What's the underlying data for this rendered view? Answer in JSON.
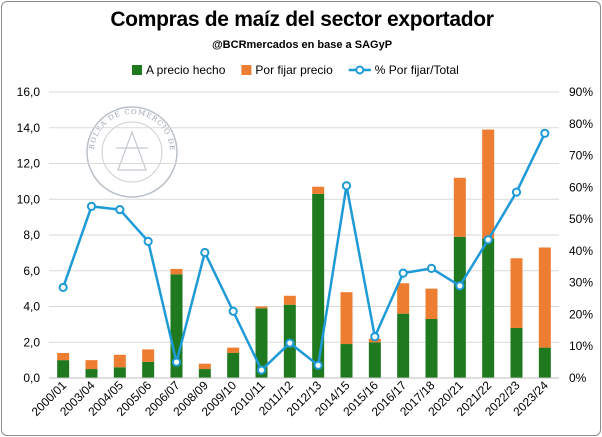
{
  "chart_data": {
    "type": "bar",
    "title": "Compras de maíz del sector exportador",
    "subtitle": "@BCRmercados en base a SAGyP",
    "categories": [
      "2000/01",
      "2003/04",
      "2004/05",
      "2005/06",
      "2006/07",
      "2008/09",
      "2009/10",
      "2010/11",
      "2011/12",
      "2012/13",
      "2014/15",
      "2015/16",
      "2016/17",
      "2017/18",
      "2020/21",
      "2021/22",
      "2022/23",
      "2023/24"
    ],
    "stacked": true,
    "series": [
      {
        "name": "A precio hecho",
        "type": "bar",
        "axis": "left",
        "color": "#1f7a1f",
        "values": [
          1.0,
          0.5,
          0.6,
          0.9,
          5.8,
          0.5,
          1.4,
          3.9,
          4.1,
          10.3,
          1.9,
          2.0,
          3.6,
          3.3,
          7.9,
          7.8,
          2.8,
          1.7
        ]
      },
      {
        "name": "Por fijar precio",
        "type": "bar",
        "axis": "left",
        "color": "#ed7d31",
        "values": [
          0.4,
          0.5,
          0.7,
          0.7,
          0.3,
          0.3,
          0.3,
          0.1,
          0.5,
          0.4,
          2.9,
          0.2,
          1.7,
          1.7,
          3.3,
          6.1,
          3.9,
          5.6
        ]
      },
      {
        "name": "% Por fijar/Total",
        "type": "line",
        "axis": "right",
        "color": "#1e9ad6",
        "values": [
          28.5,
          54,
          53,
          43,
          5,
          39.5,
          21,
          2.5,
          11,
          4,
          60.5,
          13,
          33,
          34.5,
          29,
          43.5,
          58.5,
          77
        ]
      }
    ],
    "ylim": [
      0,
      16
    ],
    "y_ticks": [
      "0,0",
      "2,0",
      "4,0",
      "6,0",
      "8,0",
      "10,0",
      "12,0",
      "14,0",
      "16,0"
    ],
    "y2lim": [
      0,
      90
    ],
    "y2_ticks": [
      "0%",
      "10%",
      "20%",
      "30%",
      "40%",
      "50%",
      "60%",
      "70%",
      "80%",
      "90%"
    ],
    "xlabel": "",
    "ylabel": "",
    "y2label": "",
    "grid": "horizontal",
    "legend_position": "top",
    "watermark": "BOLSA DE COMERCIO DE ROSARIO"
  }
}
